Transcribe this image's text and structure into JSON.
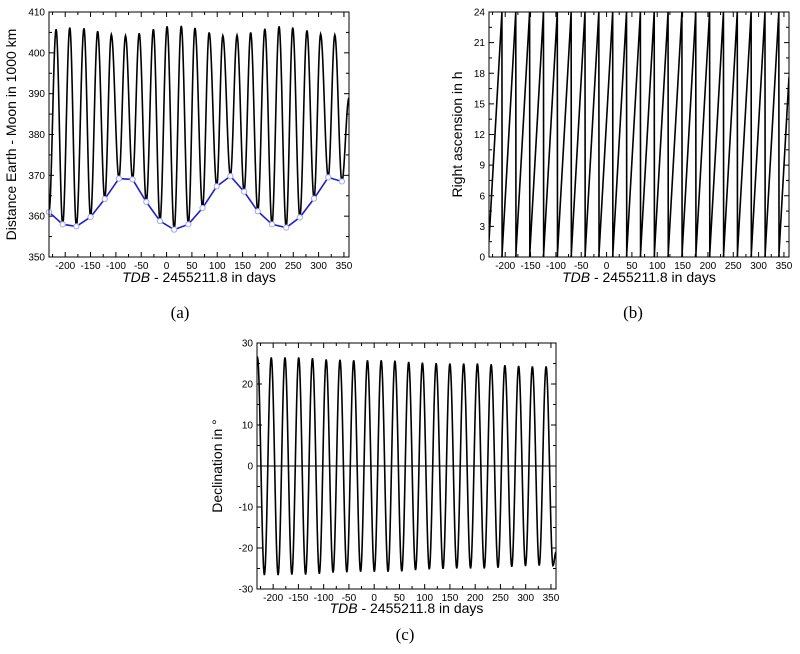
{
  "chart_data": [
    {
      "type": "line",
      "panel_label": "(a)",
      "xlabel_italic": "TDB",
      "xlabel_rest": " - 2455211.8 in days",
      "ylabel": "Distance Earth - Moon in 1000 km",
      "xlim": [
        -232,
        360
      ],
      "ylim": [
        350,
        410
      ],
      "xticks": [
        -200,
        -150,
        -100,
        -50,
        0,
        50,
        100,
        150,
        200,
        250,
        300,
        350
      ],
      "yticks": [
        350,
        360,
        370,
        380,
        390,
        400,
        410
      ],
      "grid": false,
      "series": [
        {
          "kind": "extrema-curve",
          "color": "#000000",
          "minima": [
            [
              -232,
              361
            ],
            [
              -205,
              358
            ],
            [
              -178,
              357.5
            ],
            [
              -150,
              359.8
            ],
            [
              -122,
              364.2
            ],
            [
              -94,
              369.2
            ],
            [
              -67,
              369
            ],
            [
              -40,
              363.5
            ],
            [
              -13,
              358.8
            ],
            [
              15,
              356.7
            ],
            [
              43,
              358
            ],
            [
              71,
              362
            ],
            [
              99,
              367.3
            ],
            [
              126,
              369.8
            ],
            [
              153,
              366
            ],
            [
              180,
              361.2
            ],
            [
              208,
              358
            ],
            [
              236,
              357.2
            ],
            [
              263,
              359.7
            ],
            [
              291,
              364.3
            ],
            [
              319,
              369.5
            ],
            [
              346,
              368.5
            ]
          ],
          "maxima": [
            [
              -218,
              405.8
            ],
            [
              -191,
              406.2
            ],
            [
              -163,
              406
            ],
            [
              -136,
              405.3
            ],
            [
              -109,
              404.5
            ],
            [
              -81,
              404.2
            ],
            [
              -54,
              404.8
            ],
            [
              -26,
              405.8
            ],
            [
              1,
              406.5
            ],
            [
              29,
              406.6
            ],
            [
              56,
              406.1
            ],
            [
              84,
              405
            ],
            [
              111,
              404.2
            ],
            [
              139,
              404.3
            ],
            [
              166,
              405
            ],
            [
              194,
              405.9
            ],
            [
              222,
              406.5
            ],
            [
              249,
              406.2
            ],
            [
              277,
              405.5
            ],
            [
              304,
              404.6
            ],
            [
              332,
              404.4
            ]
          ],
          "end": [
            360,
            389
          ]
        },
        {
          "kind": "markers-line",
          "color": "#1f1fd0",
          "marker_color": "#9aa8ff",
          "source": "minima"
        }
      ]
    },
    {
      "type": "line",
      "panel_label": "(b)",
      "xlabel_italic": "TDB",
      "xlabel_rest": " - 2455211.8 in days",
      "ylabel": "Right ascension in h",
      "xlim": [
        -232,
        360
      ],
      "ylim": [
        0,
        24
      ],
      "xticks": [
        -200,
        -150,
        -100,
        -50,
        0,
        50,
        100,
        150,
        200,
        250,
        300,
        350
      ],
      "yticks": [
        0,
        3,
        6,
        9,
        12,
        15,
        18,
        21,
        24
      ],
      "grid": false,
      "series": [
        {
          "kind": "sawtooth",
          "color": "#000000",
          "first_reset": -206.5,
          "period_days": 27.32,
          "max": 24
        }
      ]
    },
    {
      "type": "line",
      "panel_label": "(c)",
      "xlabel_italic": "TDB",
      "xlabel_rest": " - 2455211.8 in days",
      "ylabel": "Declination in °",
      "xlim": [
        -232,
        360
      ],
      "ylim": [
        -30,
        30
      ],
      "xticks": [
        -200,
        -150,
        -100,
        -50,
        0,
        50,
        100,
        150,
        200,
        250,
        300,
        350
      ],
      "yticks": [
        -30,
        -20,
        -10,
        0,
        10,
        20,
        30
      ],
      "grid": false,
      "zero_line": true,
      "series": [
        {
          "kind": "extrema-curve",
          "color": "#000000",
          "maxima": [
            [
              -231,
              26.5
            ],
            [
              -203.8,
              26.5
            ],
            [
              -176.6,
              26.5
            ],
            [
              -149.4,
              26.5
            ],
            [
              -122.2,
              26.3
            ],
            [
              -95,
              26
            ],
            [
              -67.7,
              25.9
            ],
            [
              -40.5,
              25.8
            ],
            [
              -13.3,
              25.8
            ],
            [
              13.9,
              25.8
            ],
            [
              41.1,
              25.7
            ],
            [
              68.3,
              25.4
            ],
            [
              95.5,
              25.2
            ],
            [
              122.7,
              25.1
            ],
            [
              149.9,
              25
            ],
            [
              177.2,
              25
            ],
            [
              204.4,
              25
            ],
            [
              231.6,
              24.8
            ],
            [
              258.8,
              24.6
            ],
            [
              286,
              24.4
            ],
            [
              313.2,
              24.3
            ],
            [
              340.4,
              24.3
            ]
          ],
          "minima": [
            [
              -217.4,
              -26.6
            ],
            [
              -190.2,
              -26.6
            ],
            [
              -163,
              -26.5
            ],
            [
              -135.8,
              -26.5
            ],
            [
              -108.6,
              -26.3
            ],
            [
              -81.4,
              -26
            ],
            [
              -54.1,
              -25.9
            ],
            [
              -26.9,
              -25.8
            ],
            [
              0.3,
              -25.8
            ],
            [
              27.5,
              -25.8
            ],
            [
              54.7,
              -25.7
            ],
            [
              81.9,
              -25.4
            ],
            [
              109.1,
              -25.2
            ],
            [
              136.3,
              -25.1
            ],
            [
              163.5,
              -25
            ],
            [
              190.8,
              -25
            ],
            [
              218,
              -25
            ],
            [
              245.2,
              -24.8
            ],
            [
              272.4,
              -24.6
            ],
            [
              299.6,
              -24.4
            ],
            [
              326.8,
              -24.3
            ],
            [
              354,
              -24.3
            ]
          ],
          "start": [
            -232,
            26.3
          ],
          "end": [
            360,
            -21
          ]
        }
      ]
    }
  ]
}
